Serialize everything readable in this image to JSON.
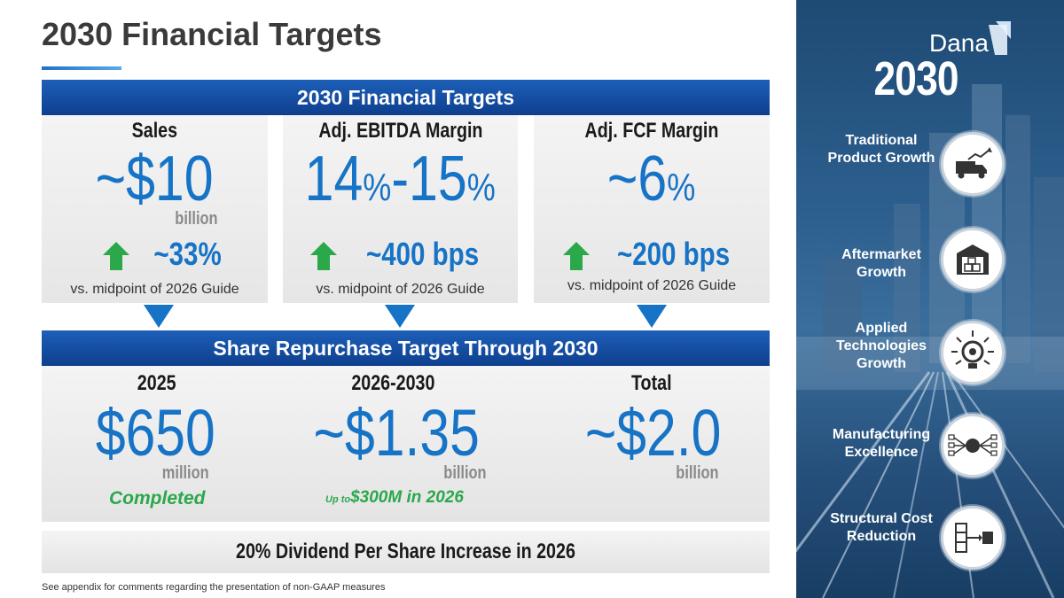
{
  "page": {
    "title": "2030 Financial Targets",
    "footnote": "See appendix for comments regarding the presentation of non-GAAP measures"
  },
  "targets_band": {
    "label": "2030 Financial Targets"
  },
  "metrics": [
    {
      "heading": "Sales",
      "value_prefix": "~$10",
      "value_suffix": "",
      "unit": "billion",
      "delta": "~33%",
      "comparison": "vs. midpoint of 2026 Guide"
    },
    {
      "heading": "Adj. EBITDA Margin",
      "value_a": "14",
      "pct_a": "%",
      "dash": "-",
      "value_b": "15",
      "pct_b": "%",
      "delta": "~400 bps",
      "comparison": "vs. midpoint of 2026 Guide"
    },
    {
      "heading": "Adj. FCF Margin",
      "value_prefix": "~6",
      "pct": "%",
      "delta": "~200 bps",
      "comparison": "vs. midpoint of 2026 Guide"
    }
  ],
  "repurchase_band": {
    "label": "Share Repurchase Target Through 2030"
  },
  "repurchase": [
    {
      "heading": "2025",
      "value": "$650",
      "unit": "million",
      "note": "Completed"
    },
    {
      "heading": "2026-2030",
      "value": "~$1.35",
      "unit": "billion",
      "note_small": "Up to",
      "note": "$300M in 2026"
    },
    {
      "heading": "Total",
      "value": "~$2.0",
      "unit": "billion"
    }
  ],
  "dividend": {
    "label": "20% Dividend Per Share Increase in 2026"
  },
  "side_panel": {
    "logo_word": "Dana",
    "logo_year": "2030",
    "pillars": [
      {
        "label": "Traditional Product Growth",
        "icon": "truck-growth-icon"
      },
      {
        "label": "Aftermarket Growth",
        "icon": "warehouse-icon"
      },
      {
        "label": "Applied Technologies Growth",
        "icon": "lightbulb-gear-icon"
      },
      {
        "label": "Manufacturing Excellence",
        "icon": "global-network-icon"
      },
      {
        "label": "Structural Cost Reduction",
        "icon": "process-flow-icon"
      }
    ]
  },
  "colors": {
    "brand_blue": "#1673c6",
    "band_dark": "#0e3f8e",
    "green": "#2aa84a",
    "gray_unit": "#8a8a8a"
  }
}
